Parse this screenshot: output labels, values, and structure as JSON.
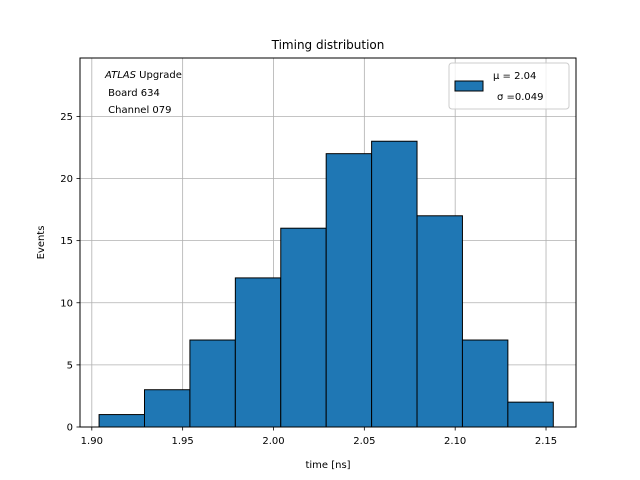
{
  "chart_data": {
    "type": "bar",
    "title": "Timing distribution",
    "xlabel": "time [ns]",
    "ylabel": "Events",
    "xlim": [
      1.8935,
      2.1665
    ],
    "ylim": [
      0,
      29.7
    ],
    "xticks": [
      1.9,
      1.95,
      2.0,
      2.05,
      2.1,
      2.15
    ],
    "xtick_labels": [
      "1.90",
      "1.95",
      "2.00",
      "2.05",
      "2.10",
      "2.15"
    ],
    "yticks": [
      0,
      5,
      10,
      15,
      20,
      25
    ],
    "ytick_labels": [
      "0",
      "5",
      "10",
      "15",
      "20",
      "25"
    ],
    "grid": true,
    "bin_edges": [
      1.904,
      1.929,
      1.954,
      1.979,
      2.004,
      2.029,
      2.054,
      2.079,
      2.104,
      2.129,
      2.154
    ],
    "counts": [
      1,
      3,
      7,
      12,
      16,
      22,
      23,
      17,
      7,
      2
    ],
    "bar_color": "#1f77b4",
    "edge_color": "#000000",
    "annotation": {
      "italic": "ATLAS",
      "rest": " Upgrade",
      "line2": " Board 634",
      "line3": " Channel 079"
    },
    "legend": {
      "placement": "upper right",
      "line1": "μ = 2.04",
      "line2": "σ =0.049"
    }
  }
}
